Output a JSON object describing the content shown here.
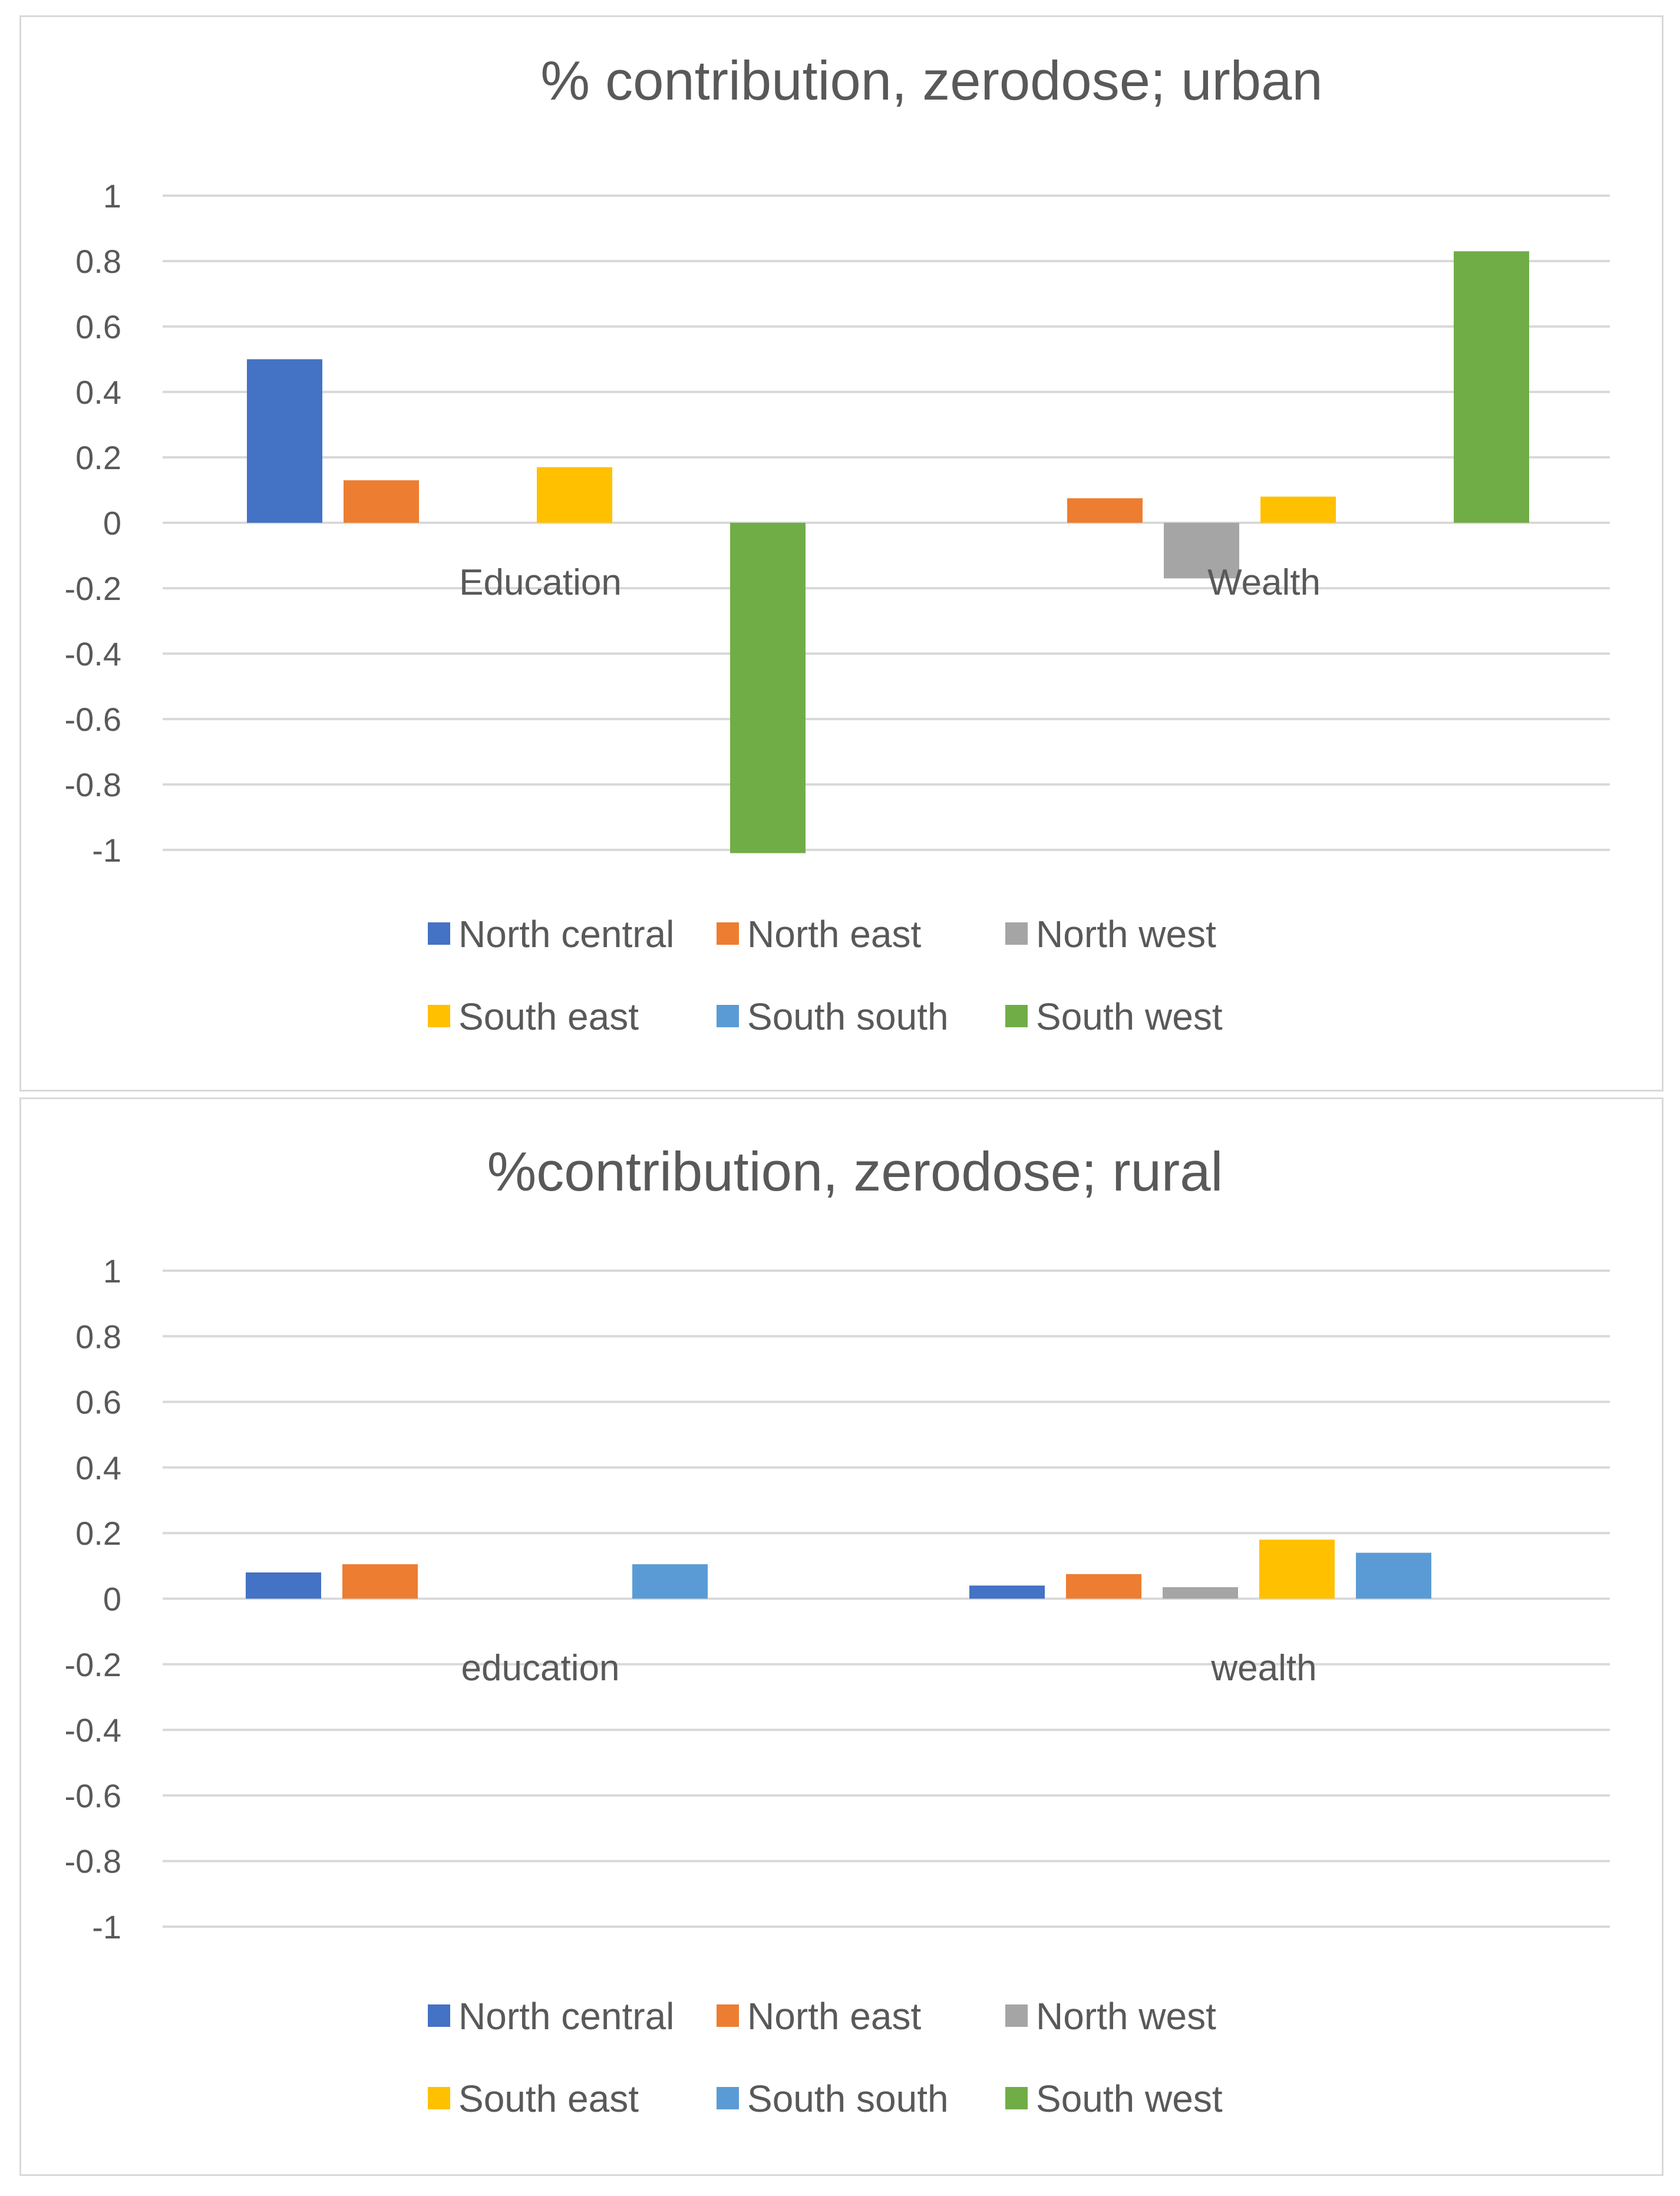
{
  "colors": {
    "North central": "#4472c4",
    "North east": "#ed7d31",
    "North west": "#a5a5a5",
    "South east": "#ffc000",
    "South south": "#5b9bd5",
    "South west": "#70ad47"
  },
  "chart_data": [
    {
      "type": "bar",
      "title": "% contribution, zerodose; urban",
      "categories": [
        "Education",
        "Wealth"
      ],
      "ylim": [
        -1,
        1
      ],
      "yticks": [
        "1",
        "0.8",
        "0.6",
        "0.4",
        "0.2",
        "0",
        "-0.2",
        "-0.4",
        "-0.6",
        "-0.8",
        "-1"
      ],
      "legend": [
        "North central",
        "North east",
        "North west",
        "South east",
        "South south",
        "South west"
      ],
      "series": [
        {
          "name": "North central",
          "values": [
            0.5,
            0
          ]
        },
        {
          "name": "North east",
          "values": [
            0.13,
            0.075
          ]
        },
        {
          "name": "North west",
          "values": [
            0,
            -0.17
          ]
        },
        {
          "name": "South east",
          "values": [
            0.17,
            0.08
          ]
        },
        {
          "name": "South south",
          "values": [
            0,
            0
          ]
        },
        {
          "name": "South west",
          "values": [
            -1.01,
            0.83
          ]
        }
      ]
    },
    {
      "type": "bar",
      "title": "%contribution, zerodose; rural",
      "categories": [
        "education",
        "wealth"
      ],
      "ylim": [
        -1,
        1
      ],
      "yticks": [
        "1",
        "0.8",
        "0.6",
        "0.4",
        "0.2",
        "0",
        "-0.2",
        "-0.4",
        "-0.6",
        "-0.8",
        "-1"
      ],
      "legend": [
        "North central",
        "North east",
        "North west",
        "South east",
        "South south",
        "South west"
      ],
      "series": [
        {
          "name": "North central",
          "values": [
            0.08,
            0.04
          ]
        },
        {
          "name": "North east",
          "values": [
            0.105,
            0.075
          ]
        },
        {
          "name": "North west",
          "values": [
            0,
            0.035
          ]
        },
        {
          "name": "South east",
          "values": [
            0,
            0.18
          ]
        },
        {
          "name": "South south",
          "values": [
            0.105,
            0.14
          ]
        },
        {
          "name": "South west",
          "values": [
            0,
            0
          ]
        }
      ]
    }
  ]
}
